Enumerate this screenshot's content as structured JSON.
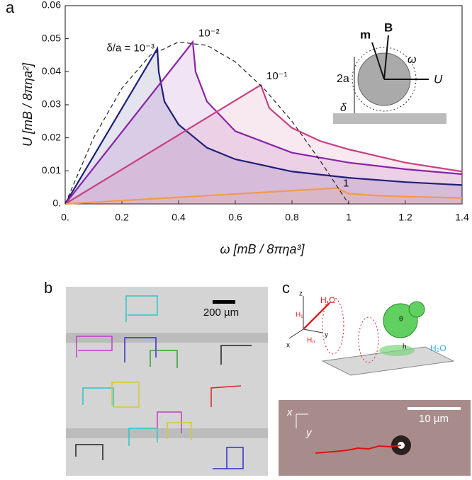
{
  "chart_data": {
    "type": "line",
    "xlabel": "ω [mB / 8πηa³]",
    "ylabel": "U [mB / 8πηa²]",
    "xlim": [
      0,
      1.4
    ],
    "ylim": [
      0,
      0.06
    ],
    "xticks": [
      {
        "value": 0,
        "label": "0."
      },
      0.2,
      0.4,
      0.6,
      0.8,
      1,
      1.2,
      1.4
    ],
    "yticks": [
      {
        "value": 0,
        "label": "0."
      },
      0.01,
      0.02,
      0.03,
      0.04,
      0.05,
      0.06
    ],
    "series": [
      {
        "name": "δ/a = 10⁻³",
        "color": "#1f1f7a",
        "x": [
          0,
          0.325,
          0.33,
          0.35,
          0.4,
          0.5,
          0.6,
          0.8,
          1.0,
          1.2,
          1.4
        ],
        "values": [
          0,
          0.047,
          0.04,
          0.031,
          0.024,
          0.017,
          0.0135,
          0.0098,
          0.0079,
          0.0066,
          0.0057
        ]
      },
      {
        "name": "10⁻²",
        "color": "#8a22a8",
        "x": [
          0,
          0.45,
          0.46,
          0.5,
          0.6,
          0.8,
          1.0,
          1.2,
          1.4
        ],
        "values": [
          0,
          0.049,
          0.04,
          0.031,
          0.022,
          0.0155,
          0.0125,
          0.0105,
          0.009
        ]
      },
      {
        "name": "10⁻¹",
        "color": "#c84080",
        "x": [
          0,
          0.69,
          0.72,
          0.8,
          0.9,
          1.0,
          1.2,
          1.4
        ],
        "values": [
          0,
          0.036,
          0.029,
          0.023,
          0.019,
          0.0165,
          0.0125,
          0.0098
        ]
      },
      {
        "name": "1",
        "color": "#f39a4a",
        "x": [
          0,
          0.96,
          1.0,
          1.1,
          1.2,
          1.4
        ],
        "values": [
          0,
          0.0048,
          0.0031,
          0.0025,
          0.0022,
          0.0018
        ]
      },
      {
        "color": "#222222",
        "dashed": true,
        "x": [
          0,
          0.1,
          0.2,
          0.3,
          0.4,
          0.5,
          0.6,
          0.7,
          0.8,
          0.9,
          1.0
        ],
        "values": [
          0,
          0.02,
          0.035,
          0.045,
          0.049,
          0.048,
          0.043,
          0.035,
          0.025,
          0.013,
          0
        ]
      }
    ]
  },
  "panel_labels": [
    "a",
    "b",
    "c"
  ],
  "inset": {
    "moment": "m",
    "field": "B",
    "rotation": "ω",
    "velocity": "U",
    "diameter": "2a",
    "gap": "δ"
  },
  "panel_b": {
    "scale_bar": "200 µm"
  },
  "panel_c": {
    "axes": [
      "z",
      "x",
      "y"
    ],
    "field_labels": [
      "H,Ω",
      "H₁",
      "H₀"
    ],
    "angle": "θ",
    "height": "h",
    "medium": "H₂O",
    "micrograph": {
      "x_axis": "x",
      "y_axis": "y",
      "scale_bar": "10 µm"
    }
  }
}
